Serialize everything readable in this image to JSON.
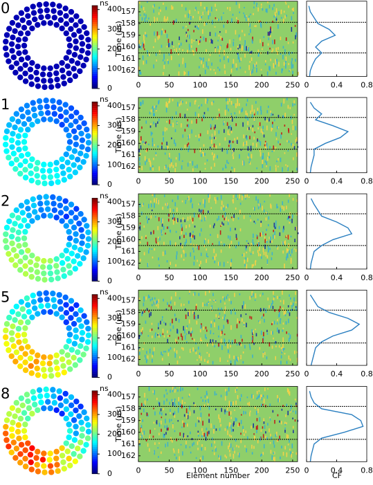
{
  "rows": [
    {
      "label": "0",
      "window": [
        157.9,
        160.5
      ],
      "cf": {
        "t": [
          156.5,
          157,
          157.5,
          158,
          158.5,
          159,
          159.5,
          160,
          160.5,
          161,
          161.5,
          162,
          162.5,
          163
        ],
        "values": [
          0.03,
          0.05,
          0.1,
          0.15,
          0.3,
          0.38,
          0.2,
          0.12,
          0.2,
          0.12,
          0.08,
          0.05,
          0.04,
          0.03
        ]
      }
    },
    {
      "label": "1",
      "window": [
        157.8,
        160.5
      ],
      "cf": {
        "t": [
          156.5,
          157,
          157.5,
          158,
          158.5,
          159,
          159.5,
          160,
          160.5,
          161,
          161.5,
          162,
          162.5,
          163
        ],
        "values": [
          0.05,
          0.1,
          0.2,
          0.12,
          0.35,
          0.55,
          0.45,
          0.25,
          0.1,
          0.1,
          0.08,
          0.06,
          0.05,
          0.04
        ]
      }
    },
    {
      "label": "2",
      "window": [
        157.8,
        160.5
      ],
      "cf": {
        "t": [
          156.5,
          157,
          157.5,
          158,
          158.5,
          159,
          159.5,
          160,
          160.5,
          161,
          161.5,
          162,
          162.5,
          163
        ],
        "values": [
          0.06,
          0.1,
          0.15,
          0.2,
          0.4,
          0.55,
          0.6,
          0.35,
          0.2,
          0.1,
          0.08,
          0.06,
          0.05,
          0.04
        ]
      }
    },
    {
      "label": "5",
      "window": [
        157.8,
        160.6
      ],
      "cf": {
        "t": [
          156.5,
          157,
          157.5,
          158,
          158.5,
          159,
          159.5,
          160,
          160.5,
          161,
          161.5,
          162,
          162.5,
          163
        ],
        "values": [
          0.05,
          0.1,
          0.15,
          0.3,
          0.55,
          0.7,
          0.6,
          0.35,
          0.2,
          0.12,
          0.1,
          0.08,
          0.06,
          0.05
        ]
      }
    },
    {
      "label": "8",
      "window": [
        157.8,
        160.6
      ],
      "cf": {
        "t": [
          156.5,
          157,
          157.5,
          158,
          158.5,
          159,
          159.5,
          160,
          160.5,
          161,
          161.5,
          162,
          162.5,
          163
        ],
        "values": [
          0.04,
          0.06,
          0.1,
          0.2,
          0.6,
          0.72,
          0.75,
          0.5,
          0.2,
          0.1,
          0.08,
          0.06,
          0.05,
          0.04
        ]
      }
    }
  ],
  "colorbar": {
    "unit": "ns",
    "lim": [
      0,
      420
    ],
    "ticks": [
      0,
      100,
      200,
      300,
      400
    ]
  },
  "heatmap": {
    "xlabel": "Element number",
    "ylabel": "Time (µs)",
    "xlim": [
      0,
      258
    ],
    "xticks": [
      0,
      50,
      100,
      150,
      200,
      250
    ],
    "ylim": [
      156.1,
      162.5
    ],
    "yticks": [
      157,
      158,
      159,
      160,
      161,
      162
    ]
  },
  "cf": {
    "xlabel": "CF",
    "xlim": [
      0,
      0.8
    ],
    "xticks": [
      0,
      0.4,
      0.8
    ]
  }
}
